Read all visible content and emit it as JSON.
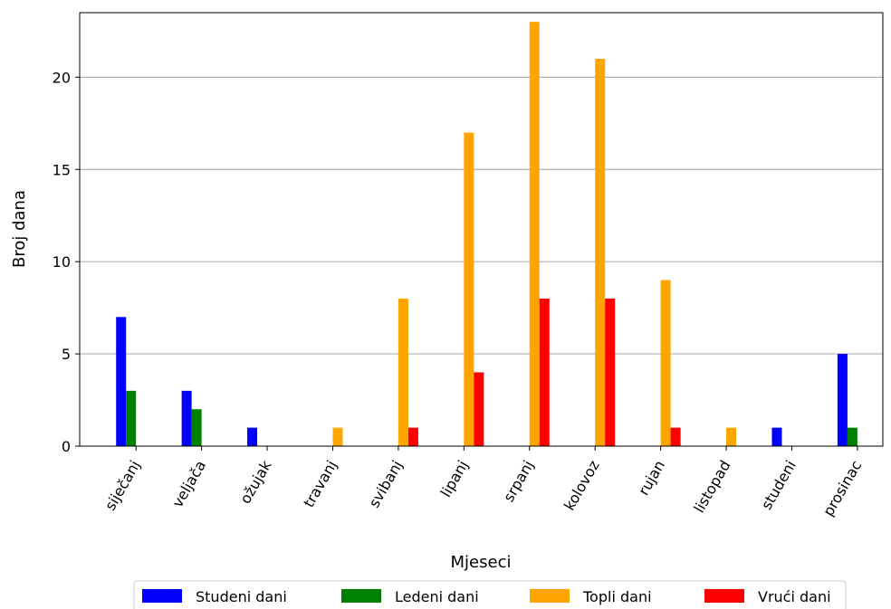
{
  "chart_data": {
    "type": "bar",
    "title": "",
    "xlabel": "Mjeseci",
    "ylabel": "Broj dana",
    "ylim": [
      0,
      23.5
    ],
    "yticks": [
      0,
      5,
      10,
      15,
      20
    ],
    "grid": "horizontal",
    "legend_position": "bottom",
    "categories": [
      "siječanj",
      "veljača",
      "ožujak",
      "travanj",
      "svibanj",
      "lipanj",
      "srpanj",
      "kolovoz",
      "rujan",
      "listopad",
      "studeni",
      "prosinac"
    ],
    "series": [
      {
        "name": "Studeni dani",
        "color": "#0000ff",
        "values": [
          7,
          3,
          1,
          0,
          0,
          0,
          0,
          0,
          0,
          0,
          1,
          5
        ]
      },
      {
        "name": "Ledeni dani",
        "color": "#008000",
        "values": [
          3,
          2,
          0,
          0,
          0,
          0,
          0,
          0,
          0,
          0,
          0,
          1
        ]
      },
      {
        "name": "Topli dani",
        "color": "#ffa500",
        "values": [
          0,
          0,
          0,
          1,
          8,
          17,
          23,
          21,
          9,
          1,
          0,
          0
        ]
      },
      {
        "name": "Vrući dani",
        "color": "#ff0000",
        "values": [
          0,
          0,
          0,
          0,
          1,
          4,
          8,
          8,
          1,
          0,
          0,
          0
        ]
      }
    ]
  }
}
